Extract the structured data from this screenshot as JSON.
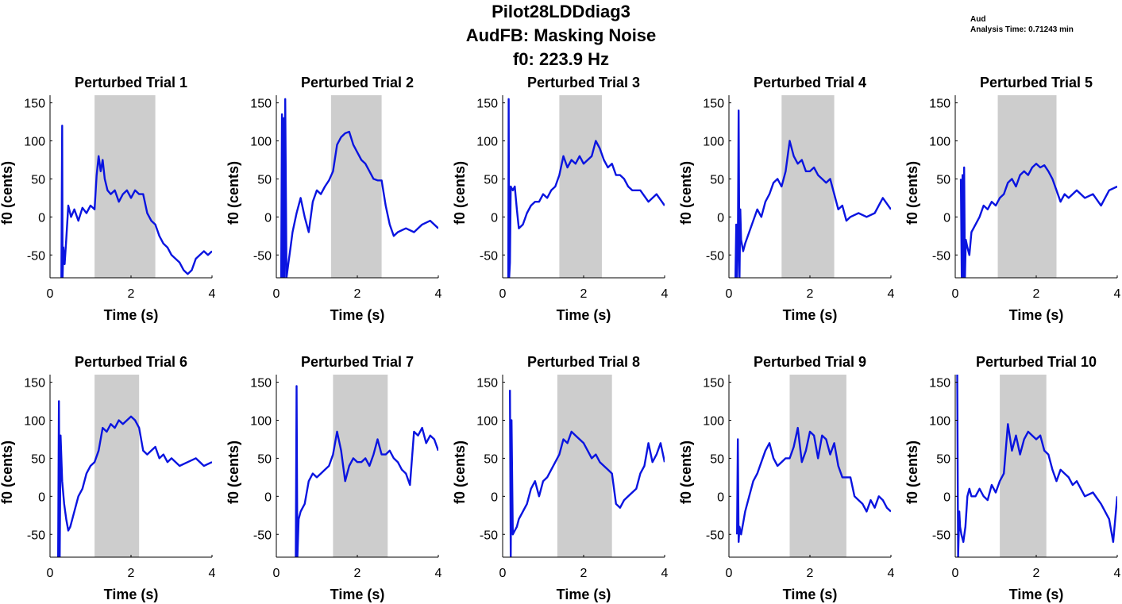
{
  "figure": {
    "title_lines": [
      "Pilot28LDDdiag3",
      "AudFB: Masking Noise",
      "f0: 223.9 Hz"
    ],
    "note_lines": [
      "Aud",
      "Analysis Time: 0.71243 min"
    ],
    "colors": {
      "trace": "#0a14e0",
      "shade": "#cdcdcd",
      "axis": "#000000"
    }
  },
  "chart_data": [
    {
      "type": "line",
      "title": "Perturbed Trial 1",
      "xlabel": "Time (s)",
      "ylabel": "f0 (cents)",
      "xlim": [
        0,
        4
      ],
      "ylim": [
        -80,
        160
      ],
      "xticks": [
        0,
        2,
        4
      ],
      "yticks": [
        -50,
        0,
        50,
        100,
        150
      ],
      "shade_range": [
        1.1,
        2.6
      ],
      "series": [
        {
          "x": [
            0.28,
            0.3,
            0.31,
            0.33,
            0.36,
            0.4,
            0.45,
            0.52,
            0.6,
            0.7,
            0.8,
            0.9,
            1.0,
            1.1,
            1.15,
            1.2,
            1.25,
            1.3,
            1.35,
            1.42,
            1.5,
            1.6,
            1.7,
            1.8,
            1.9,
            2.0,
            2.1,
            2.2,
            2.3,
            2.4,
            2.5,
            2.6,
            2.7,
            2.8,
            2.9,
            3.0,
            3.1,
            3.2,
            3.3,
            3.4,
            3.5,
            3.6,
            3.7,
            3.8,
            3.9,
            4.0
          ],
          "y": [
            -80,
            120,
            -80,
            -40,
            -62,
            -30,
            15,
            0,
            10,
            -5,
            12,
            5,
            15,
            10,
            55,
            80,
            60,
            75,
            50,
            35,
            30,
            35,
            20,
            30,
            35,
            25,
            35,
            30,
            30,
            5,
            -5,
            -10,
            -25,
            -35,
            -40,
            -50,
            -55,
            -60,
            -70,
            -75,
            -70,
            -55,
            -50,
            -45,
            -50,
            -45
          ]
        }
      ]
    },
    {
      "type": "line",
      "title": "Perturbed Trial 2",
      "xlabel": "Time (s)",
      "ylabel": "f0 (cents)",
      "xlim": [
        0,
        4
      ],
      "ylim": [
        -80,
        160
      ],
      "xticks": [
        0,
        2,
        4
      ],
      "yticks": [
        -50,
        0,
        50,
        100,
        150
      ],
      "shade_range": [
        1.35,
        2.6
      ],
      "series": [
        {
          "x": [
            0.12,
            0.14,
            0.16,
            0.18,
            0.2,
            0.22,
            0.25,
            0.3,
            0.35,
            0.4,
            0.5,
            0.6,
            0.7,
            0.8,
            0.9,
            1.0,
            1.1,
            1.2,
            1.3,
            1.4,
            1.5,
            1.6,
            1.7,
            1.8,
            1.9,
            2.0,
            2.1,
            2.2,
            2.3,
            2.4,
            2.5,
            2.6,
            2.7,
            2.8,
            2.9,
            3.0,
            3.2,
            3.4,
            3.6,
            3.8,
            4.0
          ],
          "y": [
            -80,
            135,
            -80,
            130,
            -80,
            155,
            -80,
            -60,
            -40,
            -20,
            5,
            25,
            0,
            -20,
            20,
            35,
            30,
            40,
            48,
            60,
            95,
            105,
            110,
            112,
            95,
            85,
            75,
            70,
            60,
            50,
            48,
            48,
            15,
            -10,
            -25,
            -20,
            -15,
            -20,
            -10,
            -5,
            -15
          ]
        }
      ]
    },
    {
      "type": "line",
      "title": "Perturbed Trial 3",
      "xlabel": "Time (s)",
      "ylabel": "f0 (cents)",
      "xlim": [
        0,
        4
      ],
      "ylim": [
        -80,
        160
      ],
      "xticks": [
        0,
        2,
        4
      ],
      "yticks": [
        -50,
        0,
        50,
        100,
        150
      ],
      "shade_range": [
        1.4,
        2.45
      ],
      "series": [
        {
          "x": [
            0.14,
            0.15,
            0.16,
            0.18,
            0.2,
            0.25,
            0.3,
            0.35,
            0.4,
            0.5,
            0.6,
            0.7,
            0.8,
            0.9,
            1.0,
            1.1,
            1.2,
            1.3,
            1.4,
            1.5,
            1.6,
            1.7,
            1.8,
            1.9,
            2.0,
            2.1,
            2.2,
            2.3,
            2.4,
            2.5,
            2.6,
            2.7,
            2.8,
            2.9,
            3.0,
            3.1,
            3.2,
            3.4,
            3.6,
            3.8,
            4.0
          ],
          "y": [
            -80,
            155,
            -80,
            -60,
            40,
            35,
            40,
            10,
            -15,
            -10,
            5,
            15,
            20,
            20,
            30,
            25,
            35,
            40,
            55,
            80,
            65,
            75,
            70,
            80,
            70,
            75,
            80,
            100,
            90,
            75,
            65,
            70,
            55,
            55,
            50,
            40,
            35,
            35,
            20,
            30,
            15
          ]
        }
      ]
    },
    {
      "type": "line",
      "title": "Perturbed Trial 4",
      "xlabel": "Time (s)",
      "ylabel": "f0 (cents)",
      "xlim": [
        0,
        4
      ],
      "ylim": [
        -80,
        160
      ],
      "xticks": [
        0,
        2,
        4
      ],
      "yticks": [
        -50,
        0,
        50,
        100,
        150
      ],
      "shade_range": [
        1.3,
        2.6
      ],
      "series": [
        {
          "x": [
            0.16,
            0.18,
            0.2,
            0.22,
            0.24,
            0.26,
            0.28,
            0.3,
            0.35,
            0.4,
            0.5,
            0.6,
            0.7,
            0.8,
            0.9,
            1.0,
            1.1,
            1.2,
            1.3,
            1.4,
            1.5,
            1.6,
            1.7,
            1.8,
            1.9,
            2.0,
            2.1,
            2.2,
            2.3,
            2.4,
            2.5,
            2.6,
            2.7,
            2.8,
            2.9,
            3.0,
            3.2,
            3.4,
            3.6,
            3.8,
            4.0
          ],
          "y": [
            -80,
            -10,
            -80,
            -40,
            140,
            -80,
            10,
            -30,
            -45,
            -35,
            -20,
            -5,
            10,
            0,
            20,
            30,
            45,
            50,
            40,
            60,
            100,
            80,
            70,
            75,
            60,
            60,
            65,
            55,
            50,
            45,
            50,
            30,
            10,
            15,
            -5,
            0,
            5,
            0,
            5,
            25,
            10
          ]
        }
      ]
    },
    {
      "type": "line",
      "title": "Perturbed Trial 5",
      "xlabel": "Time (s)",
      "ylabel": "f0 (cents)",
      "xlim": [
        0,
        4
      ],
      "ylim": [
        -80,
        160
      ],
      "xticks": [
        0,
        2,
        4
      ],
      "yticks": [
        -50,
        0,
        50,
        100,
        150
      ],
      "shade_range": [
        1.05,
        2.5
      ],
      "series": [
        {
          "x": [
            0.14,
            0.16,
            0.18,
            0.2,
            0.22,
            0.24,
            0.26,
            0.3,
            0.35,
            0.4,
            0.5,
            0.6,
            0.7,
            0.8,
            0.9,
            1.0,
            1.1,
            1.2,
            1.3,
            1.4,
            1.5,
            1.6,
            1.7,
            1.8,
            1.9,
            2.0,
            2.1,
            2.2,
            2.3,
            2.4,
            2.5,
            2.6,
            2.7,
            2.8,
            3.0,
            3.2,
            3.4,
            3.6,
            3.8,
            4.0
          ],
          "y": [
            50,
            -80,
            55,
            -80,
            65,
            -80,
            -30,
            -40,
            -50,
            -20,
            -10,
            0,
            15,
            10,
            20,
            15,
            25,
            30,
            45,
            50,
            40,
            55,
            60,
            55,
            65,
            70,
            65,
            68,
            60,
            50,
            35,
            20,
            30,
            25,
            35,
            25,
            30,
            15,
            35,
            40
          ]
        }
      ]
    },
    {
      "type": "line",
      "title": "Perturbed Trial 6",
      "xlabel": "Time (s)",
      "ylabel": "f0 (cents)",
      "xlim": [
        0,
        4
      ],
      "ylim": [
        -80,
        160
      ],
      "xticks": [
        0,
        2,
        4
      ],
      "yticks": [
        -50,
        0,
        50,
        100,
        150
      ],
      "shade_range": [
        1.1,
        2.2
      ],
      "series": [
        {
          "x": [
            0.2,
            0.22,
            0.24,
            0.26,
            0.3,
            0.35,
            0.4,
            0.45,
            0.5,
            0.6,
            0.7,
            0.8,
            0.9,
            1.0,
            1.1,
            1.2,
            1.3,
            1.4,
            1.5,
            1.6,
            1.7,
            1.8,
            1.9,
            2.0,
            2.1,
            2.2,
            2.3,
            2.4,
            2.5,
            2.6,
            2.7,
            2.8,
            2.9,
            3.0,
            3.2,
            3.4,
            3.6,
            3.8,
            4.0
          ],
          "y": [
            -80,
            125,
            -80,
            80,
            20,
            -10,
            -30,
            -45,
            -40,
            -20,
            0,
            10,
            30,
            40,
            45,
            60,
            90,
            85,
            95,
            90,
            100,
            95,
            100,
            105,
            100,
            90,
            60,
            55,
            60,
            65,
            50,
            55,
            45,
            50,
            40,
            45,
            50,
            40,
            45
          ]
        }
      ]
    },
    {
      "type": "line",
      "title": "Perturbed Trial 7",
      "xlabel": "Time (s)",
      "ylabel": "f0 (cents)",
      "xlim": [
        0,
        4
      ],
      "ylim": [
        -80,
        160
      ],
      "xticks": [
        0,
        2,
        4
      ],
      "yticks": [
        -50,
        0,
        50,
        100,
        150
      ],
      "shade_range": [
        1.4,
        2.75
      ],
      "series": [
        {
          "x": [
            0.48,
            0.5,
            0.52,
            0.55,
            0.6,
            0.7,
            0.8,
            0.9,
            1.0,
            1.1,
            1.2,
            1.3,
            1.4,
            1.5,
            1.6,
            1.7,
            1.8,
            1.9,
            2.0,
            2.1,
            2.2,
            2.3,
            2.4,
            2.5,
            2.6,
            2.7,
            2.8,
            2.9,
            3.0,
            3.1,
            3.2,
            3.3,
            3.4,
            3.5,
            3.6,
            3.7,
            3.8,
            3.9,
            4.0
          ],
          "y": [
            -80,
            145,
            -80,
            -30,
            -20,
            -10,
            20,
            30,
            25,
            30,
            35,
            40,
            55,
            85,
            60,
            20,
            40,
            50,
            45,
            45,
            50,
            40,
            55,
            75,
            55,
            55,
            60,
            50,
            45,
            35,
            30,
            15,
            85,
            80,
            90,
            70,
            80,
            75,
            60
          ]
        }
      ]
    },
    {
      "type": "line",
      "title": "Perturbed Trial 8",
      "xlabel": "Time (s)",
      "ylabel": "f0 (cents)",
      "xlim": [
        0,
        4
      ],
      "ylim": [
        -80,
        160
      ],
      "xticks": [
        0,
        2,
        4
      ],
      "yticks": [
        -50,
        0,
        50,
        100,
        150
      ],
      "shade_range": [
        1.35,
        2.7
      ],
      "series": [
        {
          "x": [
            0.18,
            0.2,
            0.22,
            0.25,
            0.3,
            0.35,
            0.4,
            0.5,
            0.6,
            0.7,
            0.8,
            0.9,
            1.0,
            1.1,
            1.2,
            1.3,
            1.4,
            1.5,
            1.6,
            1.7,
            1.8,
            1.9,
            2.0,
            2.1,
            2.2,
            2.3,
            2.4,
            2.5,
            2.6,
            2.7,
            2.8,
            2.9,
            3.0,
            3.1,
            3.2,
            3.3,
            3.4,
            3.5,
            3.6,
            3.7,
            3.8,
            3.9,
            4.0
          ],
          "y": [
            140,
            -80,
            100,
            -50,
            -45,
            -40,
            -30,
            -20,
            -10,
            10,
            20,
            0,
            20,
            25,
            35,
            45,
            55,
            75,
            70,
            85,
            80,
            75,
            70,
            60,
            50,
            55,
            45,
            40,
            35,
            30,
            -10,
            -15,
            -5,
            0,
            5,
            10,
            30,
            40,
            70,
            45,
            55,
            70,
            45
          ]
        }
      ]
    },
    {
      "type": "line",
      "title": "Perturbed Trial 9",
      "xlabel": "Time (s)",
      "ylabel": "f0 (cents)",
      "xlim": [
        0,
        4
      ],
      "ylim": [
        -80,
        160
      ],
      "xticks": [
        0,
        2,
        4
      ],
      "yticks": [
        -50,
        0,
        50,
        100,
        150
      ],
      "shade_range": [
        1.5,
        2.9
      ],
      "series": [
        {
          "x": [
            0.2,
            0.22,
            0.24,
            0.26,
            0.3,
            0.35,
            0.4,
            0.5,
            0.6,
            0.7,
            0.8,
            0.9,
            1.0,
            1.1,
            1.2,
            1.3,
            1.4,
            1.5,
            1.6,
            1.7,
            1.8,
            1.9,
            2.0,
            2.1,
            2.2,
            2.3,
            2.4,
            2.5,
            2.6,
            2.7,
            2.8,
            2.9,
            3.0,
            3.1,
            3.2,
            3.3,
            3.4,
            3.5,
            3.6,
            3.7,
            3.8,
            3.9,
            4.0
          ],
          "y": [
            -50,
            75,
            -60,
            -40,
            -50,
            -35,
            -20,
            0,
            20,
            30,
            45,
            60,
            70,
            50,
            40,
            45,
            50,
            50,
            65,
            90,
            45,
            60,
            85,
            80,
            50,
            80,
            75,
            55,
            70,
            40,
            25,
            25,
            25,
            0,
            -5,
            -10,
            -20,
            -5,
            -15,
            0,
            -5,
            -15,
            -20
          ]
        }
      ]
    },
    {
      "type": "line",
      "title": "Perturbed Trial 10",
      "xlabel": "Time (s)",
      "ylabel": "f0 (cents)",
      "xlim": [
        0,
        4
      ],
      "ylim": [
        -80,
        160
      ],
      "xticks": [
        0,
        2,
        4
      ],
      "yticks": [
        -50,
        0,
        50,
        100,
        150
      ],
      "shade_range": [
        1.1,
        2.25
      ],
      "series": [
        {
          "x": [
            0.05,
            0.07,
            0.1,
            0.12,
            0.15,
            0.2,
            0.25,
            0.3,
            0.35,
            0.4,
            0.5,
            0.6,
            0.7,
            0.8,
            0.9,
            1.0,
            1.1,
            1.2,
            1.3,
            1.4,
            1.5,
            1.6,
            1.7,
            1.8,
            1.9,
            2.0,
            2.1,
            2.2,
            2.3,
            2.4,
            2.5,
            2.6,
            2.7,
            2.8,
            2.9,
            3.0,
            3.2,
            3.4,
            3.6,
            3.8,
            3.9,
            4.0
          ],
          "y": [
            160,
            -80,
            -20,
            -40,
            -50,
            -60,
            -40,
            0,
            10,
            0,
            0,
            10,
            0,
            -5,
            15,
            5,
            20,
            30,
            95,
            60,
            80,
            55,
            75,
            85,
            80,
            75,
            80,
            60,
            55,
            35,
            20,
            35,
            30,
            25,
            15,
            20,
            0,
            5,
            -10,
            -30,
            -60,
            0
          ]
        }
      ]
    }
  ]
}
